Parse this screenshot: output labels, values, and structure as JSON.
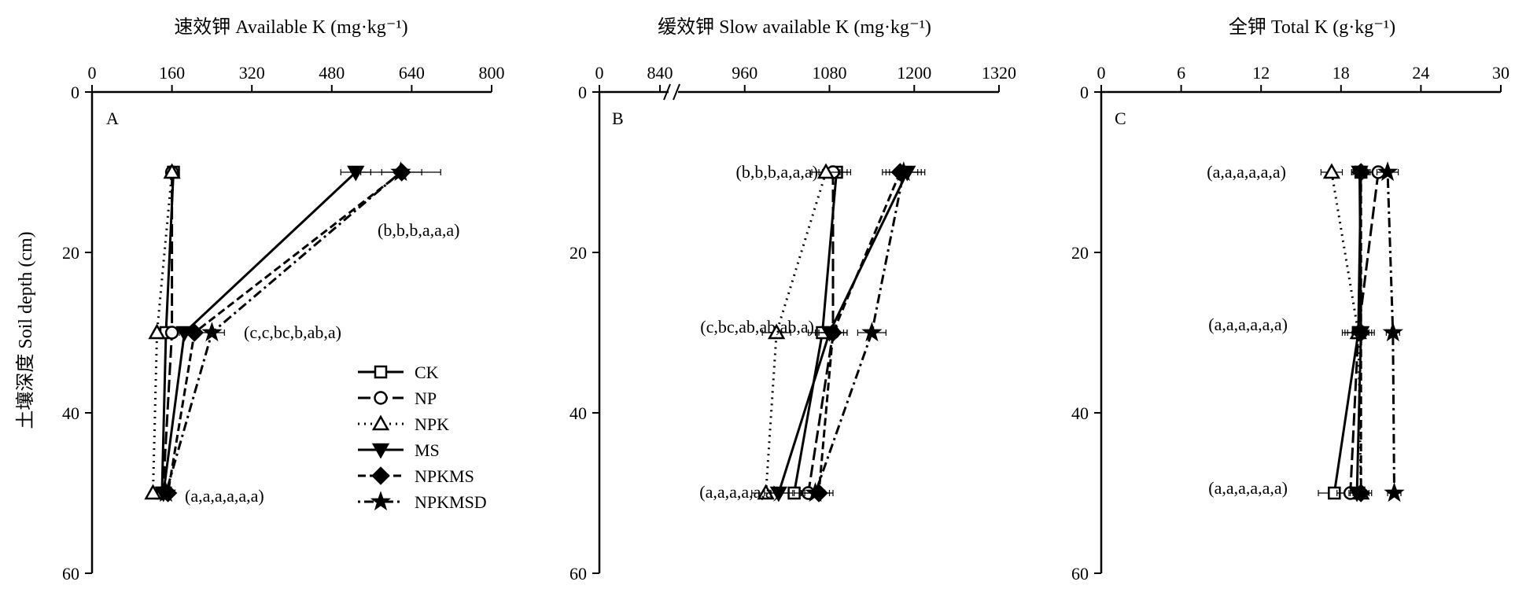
{
  "chart_data": {
    "type": "line",
    "y_axis": {
      "label": "土壤深度 Soil depth (cm)",
      "ticks": [
        "0",
        "20",
        "40",
        "60"
      ],
      "range": [
        0,
        60
      ],
      "inverted": true
    },
    "legend": {
      "placement": "inside panel A, lower-right",
      "entries": [
        {
          "name": "CK",
          "marker": "open-square",
          "line": "solid"
        },
        {
          "name": "NP",
          "marker": "open-circle",
          "line": "long-dash"
        },
        {
          "name": "NPK",
          "marker": "open-triangle",
          "line": "dotted"
        },
        {
          "name": "MS",
          "marker": "filled-triangle-down",
          "line": "solid"
        },
        {
          "name": "NPKMS",
          "marker": "filled-diamond",
          "line": "dashed"
        },
        {
          "name": "NPKMSD",
          "marker": "filled-star",
          "line": "dash-dot"
        }
      ]
    },
    "panels": [
      {
        "id": "A",
        "title": "速效钾 Available K (mg·kg⁻¹)",
        "x_ticks": [
          "0",
          "160",
          "320",
          "480",
          "640",
          "800"
        ],
        "x_range": [
          0,
          800
        ],
        "x_break": false,
        "depths": [
          10,
          30,
          50
        ],
        "series": [
          {
            "name": "CK",
            "values": [
              163,
              148,
              140
            ],
            "err": [
              5,
              5,
              5
            ]
          },
          {
            "name": "NP",
            "values": [
              160,
              160,
              142
            ],
            "err": [
              5,
              5,
              5
            ]
          },
          {
            "name": "NPK",
            "values": [
              160,
              130,
              122
            ],
            "err": [
              5,
              5,
              5
            ]
          },
          {
            "name": "MS",
            "values": [
              528,
              185,
              143
            ],
            "err": [
              30,
              10,
              5
            ]
          },
          {
            "name": "NPKMS",
            "values": [
              620,
              205,
              152
            ],
            "err": [
              40,
              10,
              5
            ]
          },
          {
            "name": "NPKMSD",
            "values": [
              618,
              240,
              148
            ],
            "err": [
              80,
              25,
              5
            ]
          }
        ],
        "annotations": [
          "(b,b,b,a,a,a)",
          "(c,c,bc,b,ab,a)",
          "(a,a,a,a,a,a)"
        ]
      },
      {
        "id": "B",
        "title": "缓效钾 Slow available  K (mg·kg⁻¹)",
        "x_ticks": [
          "0",
          "840",
          "960",
          "1080",
          "1200",
          "1320"
        ],
        "x_range": [
          0,
          1320
        ],
        "x_break": true,
        "depths": [
          10,
          30,
          50
        ],
        "series": [
          {
            "name": "CK",
            "values": [
              1090,
              1070,
              1030
            ],
            "err": [
              20,
              20,
              20
            ]
          },
          {
            "name": "NP",
            "values": [
              1085,
              1085,
              1050
            ],
            "err": [
              20,
              20,
              20
            ]
          },
          {
            "name": "NPK",
            "values": [
              1075,
              1005,
              990
            ],
            "err": [
              20,
              20,
              20
            ]
          },
          {
            "name": "MS",
            "values": [
              1190,
              1080,
              1008
            ],
            "err": [
              25,
              20,
              20
            ]
          },
          {
            "name": "NPKMS",
            "values": [
              1180,
              1085,
              1065
            ],
            "err": [
              25,
              20,
              20
            ]
          },
          {
            "name": "NPKMSD",
            "values": [
              1185,
              1140,
              1060
            ],
            "err": [
              25,
              20,
              20
            ]
          }
        ],
        "annotations": [
          "(b,b,b,a,a,a)",
          "(c,bc,ab,ab,ab,a)",
          "(a,a,a,a,a,a)"
        ]
      },
      {
        "id": "C",
        "title": "全钾 Total K (g·kg⁻¹)",
        "x_ticks": [
          "0",
          "6",
          "12",
          "18",
          "24",
          "30"
        ],
        "x_range": [
          0,
          30
        ],
        "x_break": false,
        "depths": [
          10,
          30,
          50
        ],
        "series": [
          {
            "name": "CK",
            "values": [
              19.5,
              19.3,
              17.5
            ],
            "err": [
              0.7,
              1.2,
              1.2
            ]
          },
          {
            "name": "NP",
            "values": [
              20.8,
              19.3,
              18.7
            ],
            "err": [
              0.7,
              1.0,
              1.0
            ]
          },
          {
            "name": "NPK",
            "values": [
              17.3,
              19.3,
              19.5
            ],
            "err": [
              0.8,
              0.8,
              0.8
            ]
          },
          {
            "name": "MS",
            "values": [
              19.4,
              19.5,
              19.2
            ],
            "err": [
              0.6,
              0.6,
              0.6
            ]
          },
          {
            "name": "NPKMS",
            "values": [
              19.5,
              19.5,
              19.5
            ],
            "err": [
              0.6,
              0.6,
              0.6
            ]
          },
          {
            "name": "NPKMSD",
            "values": [
              21.5,
              21.9,
              22.0
            ],
            "err": [
              0.8,
              0.5,
              0.5
            ]
          }
        ],
        "annotations": [
          "(a,a,a,a,a,a)",
          "(a,a,a,a,a,a)",
          "(a,a,a,a,a,a)"
        ]
      }
    ]
  }
}
